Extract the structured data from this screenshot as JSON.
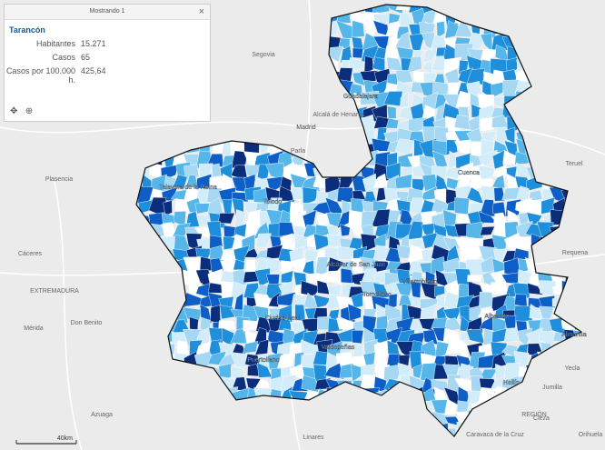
{
  "popup": {
    "header": "Mostrando 1",
    "title": "Tarancón",
    "fields": [
      {
        "label": "Habitantes",
        "value": "15.271"
      },
      {
        "label": "Casos",
        "value": "65"
      },
      {
        "label": "Casos por 100.000 h.",
        "value": "425,64"
      }
    ]
  },
  "place_labels": [
    "Segovia",
    "Madrid",
    "Alcalá de Henares",
    "Guadalajara",
    "Teruel",
    "Parla",
    "Plasencia",
    "Talavera de la Reina",
    "Toledo",
    "Cuenca",
    "Requena",
    "Cáceres",
    "EXTREMADURA",
    "Alcázar de San Juan",
    "Tomelloso",
    "Villarrobledo",
    "Mérida",
    "Don Benito",
    "Ciudad Real",
    "Albacete",
    "Almansa",
    "Valdepeñas",
    "Puertollano",
    "Hellín",
    "Yecla",
    "Jumilla",
    "Cieza",
    "Azuaga",
    "Linares",
    "Caravaca de la Cruz",
    "REGIÓN",
    "Orihuela"
  ],
  "scale": "40km"
}
